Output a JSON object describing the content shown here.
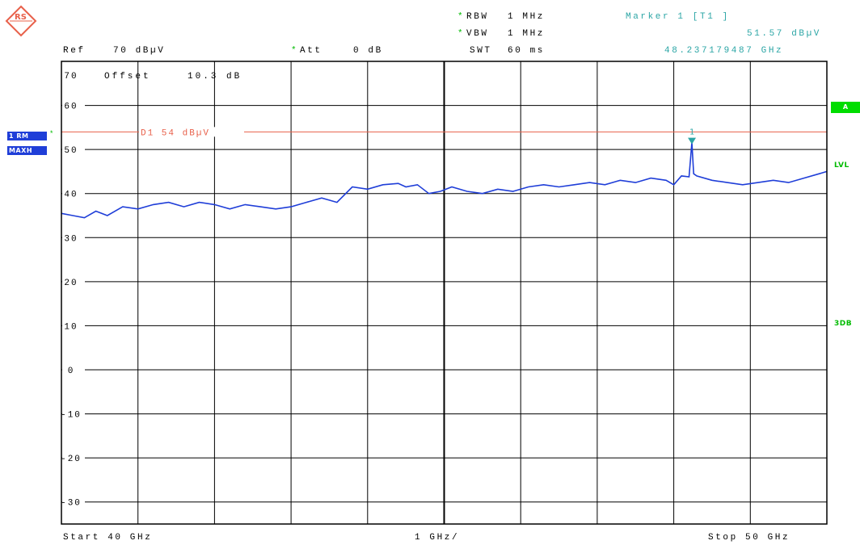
{
  "header": {
    "ref_label": "Ref",
    "ref_value": "70 dBµV",
    "att_label": "Att",
    "att_value": "0 dB",
    "rbw_label": "RBW",
    "rbw_value": "1 MHz",
    "vbw_label": "VBW",
    "vbw_value": "1 MHz",
    "swt_label": "SWT",
    "swt_value": "60 ms",
    "offset_label": "Offset",
    "offset_value": "10.3 dB"
  },
  "marker": {
    "title": "Marker 1 [T1 ]",
    "level": "51.57 dBµV",
    "frequency": "48.237179487 GHz",
    "label": "1"
  },
  "trace_badges": {
    "rm": "1 RM",
    "maxh": "MAXH"
  },
  "side_labels": {
    "a": "A",
    "lvl": "LVL",
    "db3": "3DB"
  },
  "footer": {
    "start": "Start 40 GHz",
    "span": "1 GHz/",
    "stop": "Stop 50 GHz"
  },
  "display_line": {
    "label": "D1 54 dBµV",
    "level": 54
  },
  "colors": {
    "trace": "#1f3ed8",
    "display_line": "#e8604a",
    "marker": "#2aa5a5",
    "grid": "#000000",
    "accent": "#00dd00"
  },
  "logo": {
    "text": "RS"
  },
  "chart_data": {
    "type": "line",
    "xlim": [
      40,
      50
    ],
    "ylim": [
      -35,
      70
    ],
    "yticks": [
      "70",
      "60",
      "50",
      "40",
      "30",
      "20",
      "10",
      "0",
      "-10",
      "-20",
      "-30"
    ],
    "grid": true,
    "series": [
      {
        "x": [
          40.0,
          40.15,
          40.3,
          40.45,
          40.6,
          40.8,
          41.0,
          41.2,
          41.4,
          41.6,
          41.8,
          42.0,
          42.2,
          42.4,
          42.6,
          42.8,
          43.0,
          43.2,
          43.4,
          43.5,
          43.6,
          43.8,
          44.0,
          44.2,
          44.4,
          44.5,
          44.65,
          44.8,
          44.95,
          45.1,
          45.3,
          45.5,
          45.7,
          45.9,
          46.1,
          46.3,
          46.5,
          46.7,
          46.9,
          47.1,
          47.3,
          47.5,
          47.7,
          47.9,
          48.0,
          48.1,
          48.2,
          48.237,
          48.26,
          48.3,
          48.5,
          48.7,
          48.9,
          49.1,
          49.3,
          49.5,
          49.7,
          49.9,
          50.0
        ],
        "y": [
          35.5,
          35.0,
          34.5,
          36.0,
          35.0,
          37.0,
          36.5,
          37.5,
          38.0,
          37.0,
          38.0,
          37.5,
          36.5,
          37.5,
          37.0,
          36.5,
          37.0,
          38.0,
          39.0,
          38.5,
          38.0,
          41.5,
          41.0,
          42.0,
          42.3,
          41.5,
          42.0,
          40.0,
          40.5,
          41.5,
          40.5,
          40.0,
          41.0,
          40.5,
          41.5,
          42.0,
          41.5,
          42.0,
          42.5,
          42.0,
          43.0,
          42.5,
          43.5,
          43.0,
          42.0,
          44.0,
          43.8,
          51.57,
          44.5,
          44.0,
          43.0,
          42.5,
          42.0,
          42.5,
          43.0,
          42.5,
          43.5,
          44.5,
          45.0
        ]
      }
    ]
  }
}
